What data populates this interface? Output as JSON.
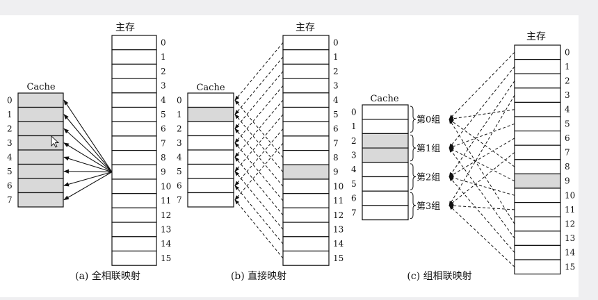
{
  "memory_label": "主存",
  "cache_label": "Cache",
  "memory_blocks": [
    "0",
    "1",
    "2",
    "3",
    "4",
    "5",
    "6",
    "7",
    "8",
    "9",
    "10",
    "11",
    "12",
    "13",
    "14",
    "15"
  ],
  "cache_blocks": [
    "0",
    "1",
    "2",
    "3",
    "4",
    "5",
    "6",
    "7"
  ],
  "panel_a": {
    "caption": "(a) 全相联映射",
    "highlighted_cache_lines": [
      0,
      1,
      2,
      3,
      4,
      5,
      6,
      7
    ],
    "source_memory_block": 9
  },
  "panel_b": {
    "caption": "(b) 直接映射",
    "highlighted_cache_line": 1,
    "highlighted_memory_block": 9
  },
  "panel_c": {
    "caption": "(c) 组相联映射",
    "groups": [
      "第0组",
      "第1组",
      "第2组",
      "第3组"
    ],
    "highlighted_cache_lines": [
      2,
      3
    ],
    "highlighted_memory_block": 9
  },
  "colors": {
    "highlight": "#d9d9d9",
    "line": "#111111",
    "background": "#efeff1",
    "panel": "#ffffff"
  },
  "icons": [
    "mouse-cursor-icon"
  ]
}
